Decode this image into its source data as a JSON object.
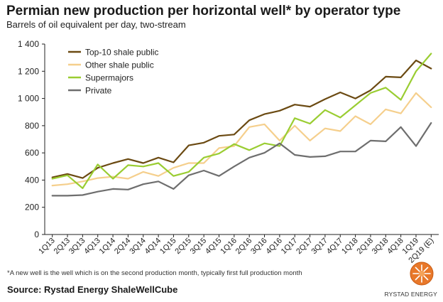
{
  "chart_data": {
    "type": "line",
    "title": "Permian new production per horizontal well* by operator type",
    "subtitle": "Barrels of oil equivalent per day, two-stream",
    "xlabel": "",
    "ylabel": "",
    "ylim": [
      0,
      1400
    ],
    "yticks": [
      0,
      200,
      400,
      600,
      800,
      1000,
      1200,
      1400
    ],
    "ytick_labels": [
      "0",
      "200",
      "400",
      "600",
      "800",
      "1 000",
      "1 200",
      "1 400"
    ],
    "categories": [
      "1Q13",
      "2Q13",
      "3Q13",
      "4Q13",
      "1Q14",
      "2Q14",
      "3Q14",
      "4Q14",
      "1Q15",
      "2Q15",
      "3Q15",
      "4Q15",
      "1Q16",
      "2Q16",
      "3Q16",
      "4Q16",
      "1Q17",
      "2Q17",
      "3Q17",
      "4Q17",
      "1Q18",
      "2Q18",
      "3Q18",
      "4Q18",
      "1Q19",
      "2Q19 (E)"
    ],
    "legend_position": "top-left",
    "series": [
      {
        "name": "Top-10 shale public",
        "color": "#6b4a12",
        "values": [
          420,
          445,
          415,
          490,
          525,
          555,
          525,
          565,
          530,
          655,
          675,
          725,
          735,
          840,
          885,
          910,
          955,
          940,
          995,
          1045,
          1000,
          1060,
          1160,
          1155,
          1280,
          1220
        ]
      },
      {
        "name": "Other shale public",
        "color": "#f5cf8c",
        "values": [
          360,
          370,
          390,
          415,
          425,
          410,
          460,
          430,
          490,
          525,
          525,
          635,
          650,
          790,
          810,
          690,
          800,
          690,
          780,
          760,
          870,
          810,
          920,
          890,
          1040,
          935
        ]
      },
      {
        "name": "Supermajors",
        "color": "#9acd32",
        "values": [
          410,
          435,
          340,
          515,
          410,
          510,
          500,
          525,
          430,
          460,
          565,
          595,
          665,
          620,
          670,
          650,
          855,
          815,
          915,
          860,
          950,
          1040,
          1080,
          990,
          1200,
          1330
        ]
      },
      {
        "name": "Private",
        "color": "#6e6e6e",
        "values": [
          285,
          285,
          290,
          315,
          335,
          330,
          370,
          390,
          335,
          435,
          470,
          430,
          500,
          565,
          600,
          670,
          585,
          570,
          575,
          610,
          610,
          690,
          685,
          790,
          650,
          820
        ]
      }
    ]
  },
  "footnote": "*A new well is the well which is on the second production month, typically first full production month",
  "source": "Source: Rystad Energy ShaleWellCube",
  "brand": "RYSTAD ENERGY"
}
